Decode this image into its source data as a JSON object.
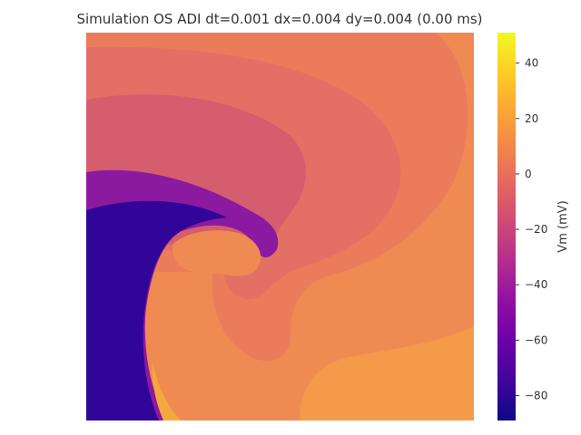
{
  "chart_data": {
    "type": "heatmap",
    "title": "Simulation OS ADI dt=0.001 dx=0.004 dy=0.004 (0.00 ms)",
    "xlabel": "",
    "ylabel": "",
    "colorbar": {
      "label": "Vm (mV)",
      "colormap": "plasma",
      "range": [
        -89,
        51
      ],
      "ticks": [
        40,
        20,
        0,
        -20,
        -40,
        -60,
        -80
      ],
      "tick_labels": [
        "40",
        "20",
        "0",
        "−20",
        "−40",
        "−60",
        "−80"
      ]
    },
    "field_description_levels_mV": {
      "background_recovery": 11,
      "outer_arc": 7,
      "inner_arc": 0,
      "wavefront_band": -40,
      "refractory_region": -86,
      "lower_right_region": 17
    },
    "grid": false
  }
}
